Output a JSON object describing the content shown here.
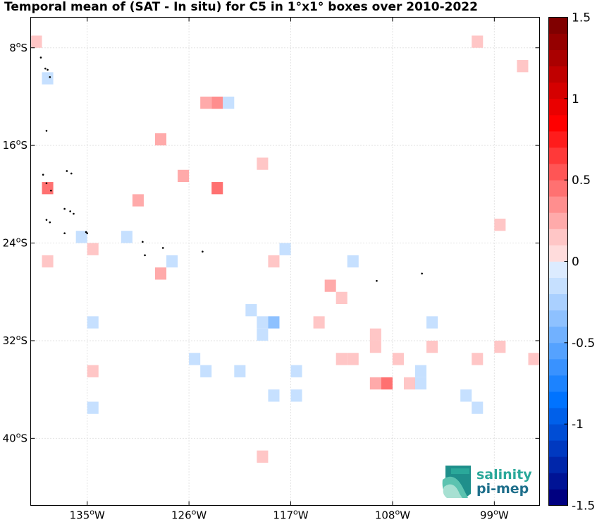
{
  "title": "Temporal mean of (SAT - In situ) for C5 in 1°x1° boxes over 2010-2022",
  "map": {
    "lon_range": [
      -140,
      -95
    ],
    "lat_range": [
      -45.5,
      -5.5
    ],
    "x_ticks": [
      {
        "lon": -135,
        "label": "135",
        "suffix": "W"
      },
      {
        "lon": -126,
        "label": "126",
        "suffix": "W"
      },
      {
        "lon": -117,
        "label": "117",
        "suffix": "W"
      },
      {
        "lon": -108,
        "label": "108",
        "suffix": "W"
      },
      {
        "lon": -99,
        "label": "99",
        "suffix": "W"
      }
    ],
    "y_ticks": [
      {
        "lat": -8,
        "label": "8",
        "suffix": "S"
      },
      {
        "lat": -16,
        "label": "16",
        "suffix": "S"
      },
      {
        "lat": -24,
        "label": "24",
        "suffix": "S"
      },
      {
        "lat": -32,
        "label": "32",
        "suffix": "S"
      },
      {
        "lat": -40,
        "label": "40",
        "suffix": "S"
      }
    ],
    "degree_symbol": "o",
    "grid": true
  },
  "colorbar": {
    "vmin": -1.5,
    "vmax": 1.5,
    "n_colors": 30,
    "ticks": [
      "1.5",
      "1",
      "0.5",
      "0",
      "-0.5",
      "-1",
      "-1.5"
    ],
    "tick_values": [
      1.5,
      1,
      0.5,
      0,
      -0.5,
      -1,
      -1.5
    ],
    "colormap": "blue-white-red"
  },
  "boxes": [
    {
      "lon": -139.5,
      "lat": -7.5,
      "value": 0.18
    },
    {
      "lon": -100.5,
      "lat": -7.5,
      "value": 0.18
    },
    {
      "lon": -96.5,
      "lat": -9.5,
      "value": 0.15
    },
    {
      "lon": -138.5,
      "lat": -10.5,
      "value": -0.15
    },
    {
      "lon": -124.5,
      "lat": -12.5,
      "value": 0.2
    },
    {
      "lon": -123.5,
      "lat": -12.5,
      "value": 0.3
    },
    {
      "lon": -122.5,
      "lat": -12.5,
      "value": -0.15
    },
    {
      "lon": -128.5,
      "lat": -15.5,
      "value": 0.2
    },
    {
      "lon": -119.5,
      "lat": -17.5,
      "value": 0.18
    },
    {
      "lon": -126.5,
      "lat": -18.5,
      "value": 0.2
    },
    {
      "lon": -138.5,
      "lat": -19.5,
      "value": 0.45
    },
    {
      "lon": -123.5,
      "lat": -19.5,
      "value": 0.45
    },
    {
      "lon": -130.5,
      "lat": -20.5,
      "value": 0.2
    },
    {
      "lon": -98.5,
      "lat": -22.5,
      "value": 0.18
    },
    {
      "lon": -135.5,
      "lat": -23.5,
      "value": -0.15
    },
    {
      "lon": -131.5,
      "lat": -23.5,
      "value": -0.15
    },
    {
      "lon": -134.5,
      "lat": -24.5,
      "value": 0.18
    },
    {
      "lon": -117.5,
      "lat": -24.5,
      "value": -0.15
    },
    {
      "lon": -138.5,
      "lat": -25.5,
      "value": 0.18
    },
    {
      "lon": -127.5,
      "lat": -25.5,
      "value": -0.15
    },
    {
      "lon": -118.5,
      "lat": -25.5,
      "value": 0.18
    },
    {
      "lon": -111.5,
      "lat": -25.5,
      "value": -0.15
    },
    {
      "lon": -128.5,
      "lat": -26.5,
      "value": 0.2
    },
    {
      "lon": -113.5,
      "lat": -27.5,
      "value": 0.2
    },
    {
      "lon": -112.5,
      "lat": -28.5,
      "value": 0.18
    },
    {
      "lon": -120.5,
      "lat": -29.5,
      "value": -0.15
    },
    {
      "lon": -134.5,
      "lat": -30.5,
      "value": -0.15
    },
    {
      "lon": -119.5,
      "lat": -30.5,
      "value": -0.15
    },
    {
      "lon": -118.5,
      "lat": -30.5,
      "value": -0.3
    },
    {
      "lon": -114.5,
      "lat": -30.5,
      "value": 0.18
    },
    {
      "lon": -104.5,
      "lat": -30.5,
      "value": -0.15
    },
    {
      "lon": -119.5,
      "lat": -31.5,
      "value": -0.15
    },
    {
      "lon": -109.5,
      "lat": -31.5,
      "value": 0.18
    },
    {
      "lon": -109.5,
      "lat": -32.5,
      "value": 0.18
    },
    {
      "lon": -104.5,
      "lat": -32.5,
      "value": 0.18
    },
    {
      "lon": -98.5,
      "lat": -32.5,
      "value": 0.18
    },
    {
      "lon": -125.5,
      "lat": -33.5,
      "value": -0.15
    },
    {
      "lon": -112.5,
      "lat": -33.5,
      "value": 0.18
    },
    {
      "lon": -111.5,
      "lat": -33.5,
      "value": 0.18
    },
    {
      "lon": -107.5,
      "lat": -33.5,
      "value": 0.18
    },
    {
      "lon": -100.5,
      "lat": -33.5,
      "value": 0.18
    },
    {
      "lon": -95.5,
      "lat": -33.5,
      "value": 0.18
    },
    {
      "lon": -134.5,
      "lat": -34.5,
      "value": 0.18
    },
    {
      "lon": -124.5,
      "lat": -34.5,
      "value": -0.15
    },
    {
      "lon": -121.5,
      "lat": -34.5,
      "value": -0.15
    },
    {
      "lon": -116.5,
      "lat": -34.5,
      "value": -0.15
    },
    {
      "lon": -105.5,
      "lat": -34.5,
      "value": -0.15
    },
    {
      "lon": -109.5,
      "lat": -35.5,
      "value": 0.2
    },
    {
      "lon": -108.5,
      "lat": -35.5,
      "value": 0.45
    },
    {
      "lon": -106.5,
      "lat": -35.5,
      "value": 0.18
    },
    {
      "lon": -105.5,
      "lat": -35.5,
      "value": -0.15
    },
    {
      "lon": -118.5,
      "lat": -36.5,
      "value": -0.15
    },
    {
      "lon": -116.5,
      "lat": -36.5,
      "value": -0.15
    },
    {
      "lon": -101.5,
      "lat": -36.5,
      "value": -0.15
    },
    {
      "lon": -134.5,
      "lat": -37.5,
      "value": -0.15
    },
    {
      "lon": -100.5,
      "lat": -37.5,
      "value": -0.15
    },
    {
      "lon": -119.5,
      "lat": -41.5,
      "value": 0.18
    }
  ],
  "islands": [
    {
      "lon": -139.1,
      "lat": -8.8
    },
    {
      "lon": -138.7,
      "lat": -9.7
    },
    {
      "lon": -138.5,
      "lat": -9.8
    },
    {
      "lon": -138.3,
      "lat": -10.4
    },
    {
      "lon": -138.6,
      "lat": -14.8
    },
    {
      "lon": -138.9,
      "lat": -18.4
    },
    {
      "lon": -138.6,
      "lat": -19.1
    },
    {
      "lon": -138.2,
      "lat": -19.7
    },
    {
      "lon": -136.8,
      "lat": -18.1
    },
    {
      "lon": -136.4,
      "lat": -18.3
    },
    {
      "lon": -137.0,
      "lat": -21.2
    },
    {
      "lon": -136.5,
      "lat": -21.4
    },
    {
      "lon": -138.6,
      "lat": -22.1
    },
    {
      "lon": -138.3,
      "lat": -22.3
    },
    {
      "lon": -135.1,
      "lat": -23.1
    },
    {
      "lon": -135.0,
      "lat": -23.2
    },
    {
      "lon": -137.0,
      "lat": -23.2
    },
    {
      "lon": -136.2,
      "lat": -21.6
    },
    {
      "lon": -130.1,
      "lat": -23.9
    },
    {
      "lon": -128.3,
      "lat": -24.4
    },
    {
      "lon": -129.9,
      "lat": -25.0
    },
    {
      "lon": -124.8,
      "lat": -24.7
    },
    {
      "lon": -109.4,
      "lat": -27.1
    },
    {
      "lon": -105.4,
      "lat": -26.5
    }
  ],
  "logo": {
    "line1": "salinity",
    "line2": "pi-mep"
  }
}
